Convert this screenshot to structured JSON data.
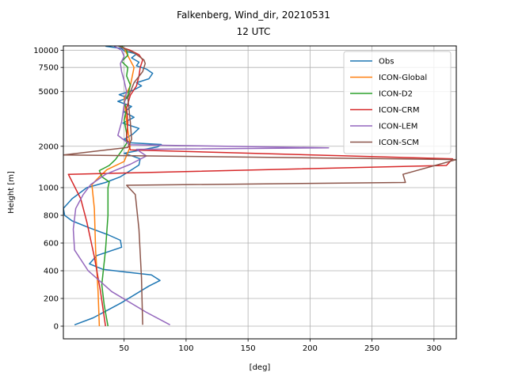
{
  "chart_data": {
    "type": "line",
    "title": "Falkenberg, Wind_dir, 20210531",
    "subtitle": "12 UTC",
    "xlabel": "[deg]",
    "ylabel": "Height [m]",
    "xlim": [
      1,
      318
    ],
    "x_ticks": [
      50,
      100,
      150,
      200,
      250,
      300
    ],
    "y_ticks": [
      0,
      200,
      400,
      600,
      800,
      1000,
      2000,
      5000,
      7500,
      10000
    ],
    "y_tick_labels": [
      "0",
      "200",
      "400",
      "600",
      "800",
      "1000",
      "2000",
      "5000",
      "7500",
      "10000"
    ],
    "y_scale": "piecewise: linear 0–1000 m, logarithmic above 1000 m",
    "grid": true,
    "legend_position": "top-right",
    "series": [
      {
        "name": "Obs",
        "color": "#1f77b4",
        "points": [
          [
            10,
            10
          ],
          [
            25,
            60
          ],
          [
            48,
            170
          ],
          [
            70,
            290
          ],
          [
            79,
            330
          ],
          [
            72,
            370
          ],
          [
            52,
            390
          ],
          [
            33,
            410
          ],
          [
            22,
            450
          ],
          [
            28,
            510
          ],
          [
            48,
            570
          ],
          [
            47,
            620
          ],
          [
            37,
            660
          ],
          [
            22,
            710
          ],
          [
            8,
            760
          ],
          [
            2,
            800
          ],
          [
            1,
            850
          ],
          [
            8,
            920
          ],
          [
            20,
            1000
          ],
          [
            35,
            1090
          ],
          [
            47,
            1200
          ],
          [
            55,
            1330
          ],
          [
            62,
            1460
          ],
          [
            63,
            1620
          ],
          [
            50,
            1780
          ],
          [
            77,
            1980
          ],
          [
            80,
            2060
          ],
          [
            55,
            2120
          ],
          [
            50,
            2250
          ],
          [
            57,
            2450
          ],
          [
            62,
            2700
          ],
          [
            49,
            2950
          ],
          [
            58,
            3250
          ],
          [
            50,
            3550
          ],
          [
            56,
            3900
          ],
          [
            45,
            4250
          ],
          [
            53,
            4500
          ],
          [
            46,
            4750
          ],
          [
            57,
            5100
          ],
          [
            64,
            5500
          ],
          [
            60,
            5800
          ],
          [
            70,
            6200
          ],
          [
            73,
            6800
          ],
          [
            68,
            7300
          ],
          [
            60,
            7700
          ],
          [
            62,
            8200
          ],
          [
            56,
            8800
          ],
          [
            60,
            9400
          ],
          [
            50,
            9900
          ],
          [
            48,
            10300
          ],
          [
            35,
            10700
          ]
        ]
      },
      {
        "name": "ICON-Global",
        "color": "#ff7f0e",
        "points": [
          [
            30,
            0
          ],
          [
            29,
            250
          ],
          [
            27,
            550
          ],
          [
            26,
            850
          ],
          [
            24,
            1050
          ],
          [
            30,
            1200
          ],
          [
            36,
            1350
          ],
          [
            50,
            1550
          ],
          [
            55,
            2000
          ],
          [
            52,
            3000
          ],
          [
            50,
            4500
          ],
          [
            55,
            5500
          ],
          [
            58,
            7500
          ],
          [
            52,
            9500
          ],
          [
            50,
            10300
          ]
        ]
      },
      {
        "name": "ICON-D2",
        "color": "#2ca02c",
        "points": [
          [
            37,
            0
          ],
          [
            34,
            150
          ],
          [
            32,
            300
          ],
          [
            35,
            550
          ],
          [
            37,
            800
          ],
          [
            37,
            1000
          ],
          [
            38,
            1100
          ],
          [
            32,
            1200
          ],
          [
            30,
            1330
          ],
          [
            38,
            1450
          ],
          [
            43,
            1600
          ],
          [
            48,
            1850
          ],
          [
            52,
            2100
          ],
          [
            52,
            2500
          ],
          [
            50,
            3100
          ],
          [
            52,
            3700
          ],
          [
            50,
            4200
          ],
          [
            53,
            4700
          ],
          [
            55,
            5600
          ],
          [
            52,
            6500
          ],
          [
            53,
            7500
          ],
          [
            48,
            8300
          ],
          [
            53,
            9200
          ],
          [
            52,
            10000
          ],
          [
            48,
            10700
          ]
        ]
      },
      {
        "name": "ICON-CRM",
        "color": "#d62728",
        "points": [
          [
            35,
            0
          ],
          [
            31,
            250
          ],
          [
            26,
            500
          ],
          [
            20,
            750
          ],
          [
            15,
            920
          ],
          [
            5,
            1250
          ],
          [
            310,
            1450
          ],
          [
            315,
            1620
          ],
          [
            55,
            1880
          ],
          [
            52,
            2300
          ],
          [
            53,
            3000
          ],
          [
            52,
            3800
          ],
          [
            55,
            4700
          ],
          [
            60,
            5500
          ],
          [
            62,
            6500
          ],
          [
            63,
            7500
          ],
          [
            65,
            8500
          ],
          [
            62,
            9300
          ],
          [
            55,
            10000
          ],
          [
            48,
            10500
          ]
        ]
      },
      {
        "name": "ICON-LEM",
        "color": "#9467bd",
        "points": [
          [
            87,
            10
          ],
          [
            68,
            100
          ],
          [
            40,
            250
          ],
          [
            21,
            400
          ],
          [
            10,
            550
          ],
          [
            9,
            700
          ],
          [
            11,
            850
          ],
          [
            17,
            950
          ],
          [
            23,
            1050
          ],
          [
            35,
            1250
          ],
          [
            55,
            1480
          ],
          [
            68,
            1700
          ],
          [
            60,
            1900
          ],
          [
            215,
            1950
          ],
          [
            55,
            2050
          ],
          [
            45,
            2400
          ],
          [
            48,
            3000
          ],
          [
            50,
            4000
          ],
          [
            52,
            5000
          ],
          [
            50,
            6000
          ],
          [
            48,
            7000
          ],
          [
            47,
            8000
          ],
          [
            50,
            9000
          ],
          [
            48,
            10000
          ],
          [
            42,
            10700
          ]
        ]
      },
      {
        "name": "ICON-SCM",
        "color": "#8c564b",
        "points": [
          [
            65,
            10
          ],
          [
            64,
            350
          ],
          [
            62,
            700
          ],
          [
            59,
            950
          ],
          [
            52,
            1040
          ],
          [
            277,
            1090
          ],
          [
            275,
            1250
          ],
          [
            318,
            1600
          ],
          [
            1,
            1730
          ],
          [
            53,
            1960
          ],
          [
            56,
            2250
          ],
          [
            55,
            3000
          ],
          [
            53,
            4500
          ],
          [
            58,
            5800
          ],
          [
            65,
            7000
          ],
          [
            67,
            8000
          ],
          [
            66,
            8500
          ],
          [
            58,
            9600
          ],
          [
            50,
            10300
          ],
          [
            45,
            10800
          ]
        ]
      }
    ]
  }
}
